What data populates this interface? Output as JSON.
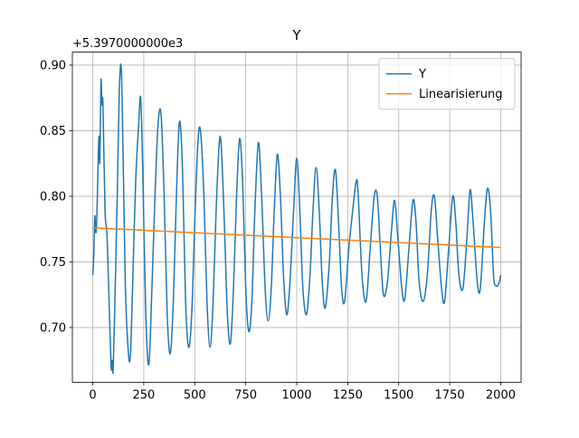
{
  "chart_data": {
    "type": "line",
    "title": "Y",
    "y_offset_label": "+5.3970000000e3",
    "xlim": [
      -100,
      2100
    ],
    "xticks": [
      0,
      250,
      500,
      750,
      1000,
      1250,
      1500,
      1750,
      2000
    ],
    "ylim": [
      0.6583,
      0.9099
    ],
    "yticks": [
      {
        "value": 0.7,
        "label": "0.70"
      },
      {
        "value": 0.75,
        "label": "0.75"
      },
      {
        "value": 0.8,
        "label": "0.80"
      },
      {
        "value": 0.85,
        "label": "0.85"
      },
      {
        "value": 0.9,
        "label": "0.90"
      }
    ],
    "grid": true,
    "legend": "upper-right",
    "series": [
      {
        "name": "Y",
        "color": "#1f77b4",
        "x": [
          0,
          5,
          10,
          15,
          20,
          30,
          35,
          40,
          45,
          50,
          60,
          70,
          80,
          90,
          95,
          100,
          110,
          120,
          130,
          140,
          150,
          160,
          175,
          185,
          195,
          210,
          225,
          235,
          245,
          260,
          275,
          290,
          305,
          320,
          335,
          350,
          365,
          380,
          395,
          410,
          425,
          440,
          455,
          470,
          485,
          500,
          515,
          528,
          545,
          560,
          575,
          590,
          605,
          620,
          630,
          645,
          660,
          675,
          690,
          705,
          720,
          735,
          750,
          765,
          780,
          795,
          812,
          828,
          845,
          860,
          875,
          890,
          905,
          920,
          935,
          950,
          965,
          985,
          1000,
          1015,
          1030,
          1048,
          1065,
          1080,
          1095,
          1110,
          1125,
          1140,
          1160,
          1175,
          1190,
          1205,
          1220,
          1235,
          1255,
          1275,
          1290,
          1300,
          1320,
          1340,
          1360,
          1380,
          1395,
          1410,
          1425,
          1445,
          1465,
          1480,
          1495,
          1515,
          1530,
          1550,
          1570,
          1585,
          1600,
          1620,
          1640,
          1660,
          1675,
          1690,
          1710,
          1725,
          1745,
          1765,
          1780,
          1795,
          1815,
          1835,
          1850,
          1865,
          1885,
          1900,
          1920,
          1935,
          1950,
          1965,
          1975,
          1990,
          2000
        ],
        "values": [
          0.74,
          0.755,
          0.785,
          0.772,
          0.785,
          0.845,
          0.826,
          0.888,
          0.87,
          0.87,
          0.79,
          0.77,
          0.72,
          0.67,
          0.675,
          0.668,
          0.73,
          0.8,
          0.88,
          0.897,
          0.82,
          0.73,
          0.68,
          0.68,
          0.73,
          0.81,
          0.855,
          0.875,
          0.82,
          0.71,
          0.672,
          0.73,
          0.8,
          0.855,
          0.862,
          0.8,
          0.71,
          0.68,
          0.72,
          0.8,
          0.857,
          0.82,
          0.72,
          0.685,
          0.71,
          0.78,
          0.84,
          0.85,
          0.8,
          0.72,
          0.685,
          0.72,
          0.79,
          0.84,
          0.838,
          0.78,
          0.71,
          0.688,
          0.73,
          0.8,
          0.844,
          0.81,
          0.73,
          0.697,
          0.72,
          0.79,
          0.841,
          0.8,
          0.73,
          0.705,
          0.73,
          0.79,
          0.832,
          0.8,
          0.74,
          0.71,
          0.73,
          0.79,
          0.829,
          0.79,
          0.73,
          0.71,
          0.74,
          0.79,
          0.822,
          0.79,
          0.735,
          0.715,
          0.75,
          0.8,
          0.82,
          0.78,
          0.73,
          0.72,
          0.76,
          0.79,
          0.81,
          0.805,
          0.74,
          0.72,
          0.76,
          0.8,
          0.8,
          0.76,
          0.725,
          0.735,
          0.775,
          0.797,
          0.77,
          0.73,
          0.722,
          0.76,
          0.797,
          0.78,
          0.735,
          0.72,
          0.74,
          0.79,
          0.8,
          0.77,
          0.73,
          0.72,
          0.76,
          0.8,
          0.78,
          0.74,
          0.73,
          0.77,
          0.805,
          0.78,
          0.735,
          0.73,
          0.78,
          0.806,
          0.79,
          0.74,
          0.732,
          0.733,
          0.74
        ]
      },
      {
        "name": "Linearisierung",
        "color": "#ff7f0e",
        "x": [
          0,
          2000
        ],
        "values": [
          0.776,
          0.761
        ]
      }
    ]
  }
}
